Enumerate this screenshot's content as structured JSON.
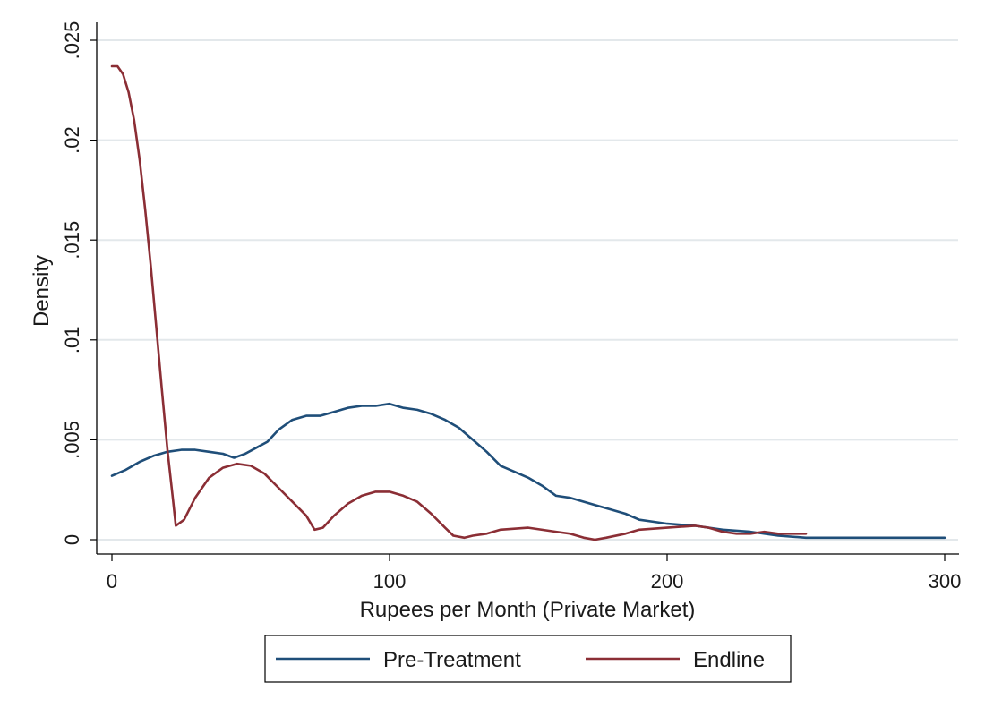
{
  "chart_data": {
    "type": "line",
    "title": "",
    "xlabel": "Rupees per Month (Private Market)",
    "ylabel": "Density",
    "xlim": [
      0,
      300
    ],
    "ylim": [
      0,
      0.025
    ],
    "x_ticks": [
      0,
      100,
      200,
      300
    ],
    "x_tick_labels": [
      "0",
      "100",
      "200",
      "300"
    ],
    "y_ticks": [
      0,
      0.005,
      0.01,
      0.015,
      0.02,
      0.025
    ],
    "y_tick_labels": [
      "0",
      ".005",
      ".01",
      ".015",
      ".02",
      ".025"
    ],
    "grid": true,
    "legend_position": "bottom",
    "series": [
      {
        "name": "Pre-Treatment",
        "color": "#1f4e79",
        "points": [
          [
            0,
            0.0032
          ],
          [
            5,
            0.0035
          ],
          [
            10,
            0.0039
          ],
          [
            15,
            0.0042
          ],
          [
            20,
            0.0044
          ],
          [
            25,
            0.0045
          ],
          [
            30,
            0.0045
          ],
          [
            35,
            0.0044
          ],
          [
            40,
            0.0043
          ],
          [
            44,
            0.0041
          ],
          [
            48,
            0.0043
          ],
          [
            52,
            0.0046
          ],
          [
            56,
            0.0049
          ],
          [
            60,
            0.0055
          ],
          [
            65,
            0.006
          ],
          [
            70,
            0.0062
          ],
          [
            75,
            0.0062
          ],
          [
            80,
            0.0064
          ],
          [
            85,
            0.0066
          ],
          [
            90,
            0.0067
          ],
          [
            95,
            0.0067
          ],
          [
            100,
            0.0068
          ],
          [
            105,
            0.0066
          ],
          [
            110,
            0.0065
          ],
          [
            115,
            0.0063
          ],
          [
            120,
            0.006
          ],
          [
            125,
            0.0056
          ],
          [
            130,
            0.005
          ],
          [
            135,
            0.0044
          ],
          [
            140,
            0.0037
          ],
          [
            145,
            0.0034
          ],
          [
            150,
            0.0031
          ],
          [
            155,
            0.0027
          ],
          [
            160,
            0.0022
          ],
          [
            165,
            0.0021
          ],
          [
            170,
            0.0019
          ],
          [
            175,
            0.0017
          ],
          [
            180,
            0.0015
          ],
          [
            185,
            0.0013
          ],
          [
            190,
            0.001
          ],
          [
            195,
            0.0009
          ],
          [
            200,
            0.0008
          ],
          [
            210,
            0.0007
          ],
          [
            220,
            0.0005
          ],
          [
            230,
            0.0004
          ],
          [
            240,
            0.0002
          ],
          [
            250,
            0.0001
          ],
          [
            260,
            0.0001
          ],
          [
            270,
            0.0001
          ],
          [
            280,
            0.0001
          ],
          [
            290,
            0.0001
          ],
          [
            300,
            0.0001
          ]
        ]
      },
      {
        "name": "Endline",
        "color": "#8b2e35",
        "points": [
          [
            0,
            0.0237
          ],
          [
            2,
            0.0237
          ],
          [
            4,
            0.0233
          ],
          [
            6,
            0.0224
          ],
          [
            8,
            0.021
          ],
          [
            10,
            0.019
          ],
          [
            12,
            0.0165
          ],
          [
            14,
            0.0137
          ],
          [
            16,
            0.0106
          ],
          [
            18,
            0.0075
          ],
          [
            20,
            0.0045
          ],
          [
            22,
            0.002
          ],
          [
            23,
            0.0007
          ],
          [
            26,
            0.001
          ],
          [
            30,
            0.0021
          ],
          [
            35,
            0.0031
          ],
          [
            40,
            0.0036
          ],
          [
            45,
            0.0038
          ],
          [
            50,
            0.0037
          ],
          [
            55,
            0.0033
          ],
          [
            60,
            0.0026
          ],
          [
            65,
            0.0019
          ],
          [
            70,
            0.0012
          ],
          [
            73,
            0.0005
          ],
          [
            76,
            0.0006
          ],
          [
            80,
            0.0012
          ],
          [
            85,
            0.0018
          ],
          [
            90,
            0.0022
          ],
          [
            95,
            0.0024
          ],
          [
            100,
            0.0024
          ],
          [
            105,
            0.0022
          ],
          [
            110,
            0.0019
          ],
          [
            115,
            0.0013
          ],
          [
            120,
            0.0006
          ],
          [
            123,
            0.0002
          ],
          [
            127,
            0.0001
          ],
          [
            130,
            0.0002
          ],
          [
            135,
            0.0003
          ],
          [
            140,
            0.0005
          ],
          [
            150,
            0.0006
          ],
          [
            160,
            0.0004
          ],
          [
            165,
            0.0003
          ],
          [
            170,
            0.0001
          ],
          [
            174,
            0.0
          ],
          [
            178,
            0.0001
          ],
          [
            185,
            0.0003
          ],
          [
            190,
            0.0005
          ],
          [
            200,
            0.0006
          ],
          [
            210,
            0.0007
          ],
          [
            215,
            0.0006
          ],
          [
            220,
            0.0004
          ],
          [
            225,
            0.0003
          ],
          [
            230,
            0.0003
          ],
          [
            235,
            0.0004
          ],
          [
            240,
            0.0003
          ],
          [
            250,
            0.0003
          ]
        ]
      }
    ]
  }
}
